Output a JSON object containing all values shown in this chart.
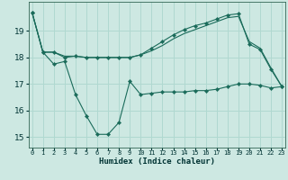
{
  "title": "",
  "xlabel": "Humidex (Indice chaleur)",
  "ylabel": "",
  "bg_color": "#cde8e2",
  "grid_color": "#b0d8d0",
  "line_color": "#1a6b5a",
  "marker": "D",
  "marker_size": 2.2,
  "x_ticks": [
    0,
    1,
    2,
    3,
    4,
    5,
    6,
    7,
    8,
    9,
    10,
    11,
    12,
    13,
    14,
    15,
    16,
    17,
    18,
    19,
    20,
    21,
    22,
    23
  ],
  "x_tick_labels": [
    "0",
    "1",
    "2",
    "3",
    "4",
    "5",
    "6",
    "7",
    "8",
    "9",
    "10",
    "11",
    "12",
    "13",
    "14",
    "15",
    "16",
    "17",
    "18",
    "19",
    "20",
    "21",
    "22",
    "23"
  ],
  "ylim": [
    14.6,
    20.1
  ],
  "xlim": [
    -0.3,
    23.3
  ],
  "y_ticks": [
    15,
    16,
    17,
    18,
    19
  ],
  "series": [
    {
      "x": [
        0,
        1,
        2,
        3,
        4,
        5,
        6,
        7,
        8,
        9,
        10,
        11,
        12,
        13,
        14,
        15,
        16,
        17,
        18,
        19,
        20,
        21,
        22,
        23
      ],
      "y": [
        19.7,
        18.2,
        17.75,
        17.85,
        16.6,
        15.8,
        15.1,
        15.1,
        15.55,
        17.1,
        16.6,
        16.65,
        16.7,
        16.7,
        16.7,
        16.75,
        16.75,
        16.8,
        16.9,
        17.0,
        17.0,
        16.95,
        16.85,
        16.9
      ],
      "has_markers": true
    },
    {
      "x": [
        0,
        1,
        2,
        3,
        4,
        5,
        6,
        7,
        8,
        9,
        10,
        11,
        12,
        13,
        14,
        15,
        16,
        17,
        18,
        19,
        20,
        21,
        22,
        23
      ],
      "y": [
        19.7,
        18.2,
        18.2,
        18.0,
        18.05,
        18.0,
        18.0,
        18.0,
        18.0,
        18.0,
        18.1,
        18.35,
        18.6,
        18.85,
        19.05,
        19.2,
        19.3,
        19.45,
        19.6,
        19.65,
        18.5,
        18.3,
        17.55,
        16.9
      ],
      "has_markers": true
    },
    {
      "x": [
        0,
        1,
        2,
        3,
        4,
        5,
        6,
        7,
        8,
        9,
        10,
        11,
        12,
        13,
        14,
        15,
        16,
        17,
        18,
        19,
        20,
        21,
        22,
        23
      ],
      "y": [
        19.7,
        18.2,
        18.2,
        18.05,
        18.05,
        18.0,
        18.0,
        18.0,
        18.0,
        18.0,
        18.1,
        18.25,
        18.45,
        18.7,
        18.9,
        19.05,
        19.2,
        19.35,
        19.5,
        19.55,
        18.6,
        18.35,
        17.6,
        16.9
      ],
      "has_markers": false
    }
  ]
}
